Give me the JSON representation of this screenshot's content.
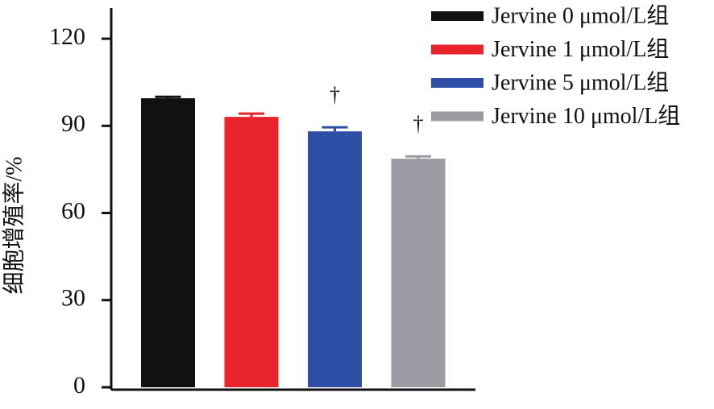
{
  "chart_data": {
    "type": "bar",
    "y_label": "细胞增殖率/%",
    "categories": [
      null
    ],
    "series": [
      {
        "name": "Jervine 0 μmol/L组",
        "color": "#111111",
        "values": [
          99.5
        ],
        "errors": [
          0.5
        ]
      },
      {
        "name": "Jervine 1 μmol/L组",
        "color": "#e8232b",
        "values": [
          93.1
        ],
        "errors": [
          1.1
        ]
      },
      {
        "name": "Jervine 5 μmol/L组",
        "color": "#2e4fa6",
        "values": [
          88.1
        ],
        "errors": [
          1.4
        ],
        "annotation": "†"
      },
      {
        "name": "Jervine 10 μmol/L组",
        "color": "#9a9ba3",
        "values": [
          78.7
        ],
        "errors": [
          0.8
        ],
        "annotation": "†"
      }
    ],
    "ylim": [
      0,
      130
    ],
    "yticks": [
      0,
      30,
      60,
      90,
      120
    ],
    "grid": false,
    "legend": "top-right"
  }
}
